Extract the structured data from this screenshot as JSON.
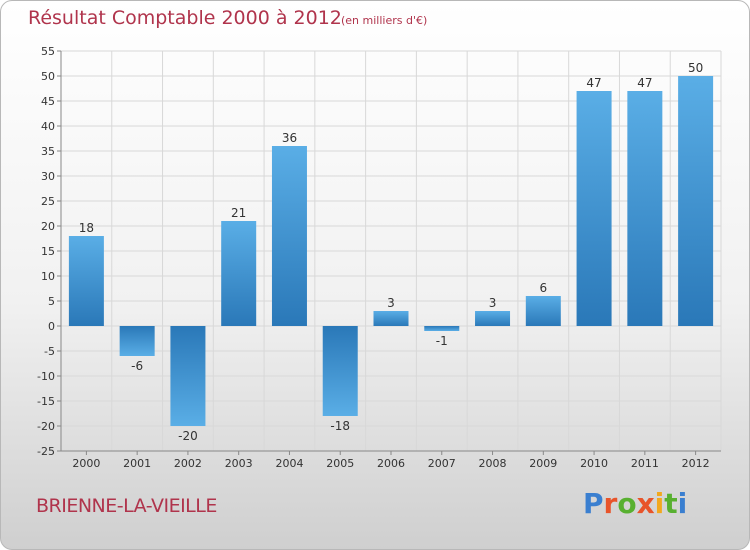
{
  "chart_data": {
    "type": "bar",
    "title": "Résultat Comptable 2000 à 2012",
    "subtitle": "(en milliers d'€)",
    "xlabel": "",
    "ylabel": "",
    "categories": [
      "2000",
      "2001",
      "2002",
      "2003",
      "2004",
      "2005",
      "2006",
      "2007",
      "2008",
      "2009",
      "2010",
      "2011",
      "2012"
    ],
    "values": [
      18,
      -6,
      -20,
      21,
      36,
      -18,
      3,
      -1,
      3,
      6,
      47,
      47,
      50
    ],
    "value_labels": [
      "18",
      "-6",
      "-20",
      "21",
      "36",
      "-18",
      "3",
      "-1",
      "3",
      "6",
      "47",
      "47",
      "50"
    ],
    "ylim": [
      -25,
      55
    ],
    "yticks": [
      "-25",
      "-20",
      "-15",
      "-10",
      "-5",
      "0",
      "5",
      "10",
      "15",
      "20",
      "25",
      "30",
      "35",
      "40",
      "45",
      "50",
      "55"
    ],
    "grid": true,
    "legend": "none"
  },
  "commune_name": "BRIENNE-LA-VIEILLE",
  "logo": {
    "letters": [
      "P",
      "r",
      "o",
      "x",
      "i",
      "t",
      "i"
    ],
    "colors": [
      "#3a7fd0",
      "#e8542a",
      "#58b030",
      "#e8542a",
      "#f2a81e",
      "#58b030",
      "#3a7fd0"
    ]
  },
  "colors": {
    "bar_light": "#5aaee6",
    "bar_dark": "#2a78b8",
    "grid": "#d8d8d8",
    "text": "#333333",
    "accent": "#b0344c"
  }
}
